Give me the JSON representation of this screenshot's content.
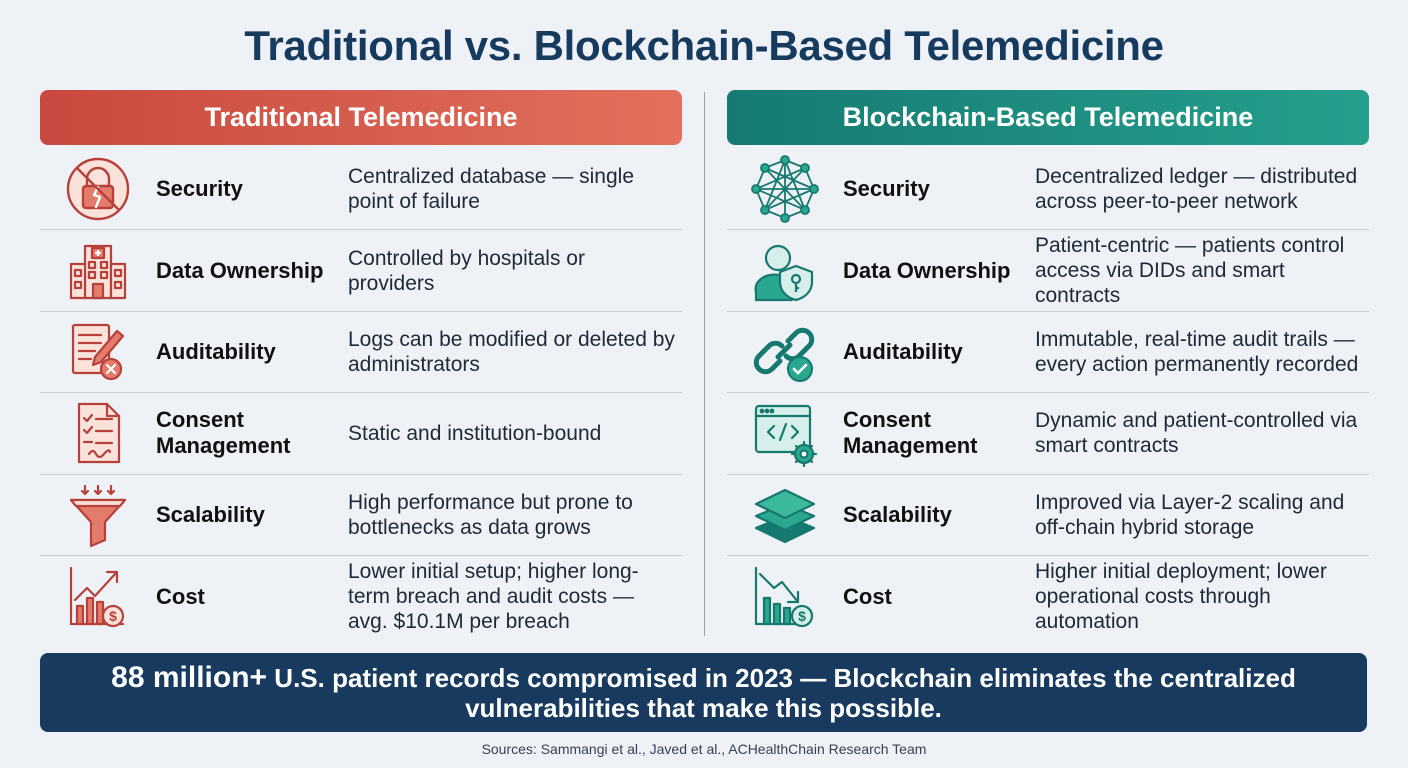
{
  "title": "Traditional vs. Blockchain-Based Telemedicine",
  "colors": {
    "traditional": "#c8493f",
    "blockchain": "#167a71",
    "navy": "#173a5e"
  },
  "traditional": {
    "header": "Traditional Telemedicine",
    "rows": [
      {
        "icon": "broken-lock-icon",
        "criterion": "Security",
        "description": "Centralized database — single point of failure"
      },
      {
        "icon": "hospital-icon",
        "criterion": "Data Ownership",
        "description": "Controlled by hospitals or providers"
      },
      {
        "icon": "edited-document-x-icon",
        "criterion": "Auditability",
        "description": "Logs can be modified or deleted by administrators"
      },
      {
        "icon": "checklist-form-icon",
        "criterion": "Consent Management",
        "description": "Static and institution-bound"
      },
      {
        "icon": "funnel-icon",
        "criterion": "Scalability",
        "description": "High performance but prone to bottlenecks as data grows"
      },
      {
        "icon": "rising-cost-chart-icon",
        "criterion": "Cost",
        "description": "Lower initial setup; higher long-term breach and audit costs — avg. $10.1M per breach"
      }
    ]
  },
  "blockchain": {
    "header": "Blockchain-Based Telemedicine",
    "rows": [
      {
        "icon": "network-nodes-icon",
        "criterion": "Security",
        "description": "Decentralized ledger — distributed across peer-to-peer network"
      },
      {
        "icon": "user-shield-key-icon",
        "criterion": "Data Ownership",
        "description": "Patient-centric — patients control access via DIDs and smart contracts"
      },
      {
        "icon": "chain-link-check-icon",
        "criterion": "Auditability",
        "description": "Immutable, real-time audit trails — every action permanently recorded"
      },
      {
        "icon": "code-window-gear-icon",
        "criterion": "Consent Management",
        "description": "Dynamic and patient-controlled via smart contracts"
      },
      {
        "icon": "layer-stack-icon",
        "criterion": "Scalability",
        "description": "Improved via Layer-2 scaling and off-chain hybrid storage"
      },
      {
        "icon": "falling-cost-chart-icon",
        "criterion": "Cost",
        "description": "Higher initial deployment; lower operational costs through automation"
      }
    ]
  },
  "banner": {
    "highlight": "88 million+",
    "text": " U.S. patient records compromised in 2023 — Blockchain eliminates the centralized vulnerabilities that make this possible."
  },
  "sources": "Sources: Sammangi et al., Javed et al., ACHealthChain Research Team"
}
